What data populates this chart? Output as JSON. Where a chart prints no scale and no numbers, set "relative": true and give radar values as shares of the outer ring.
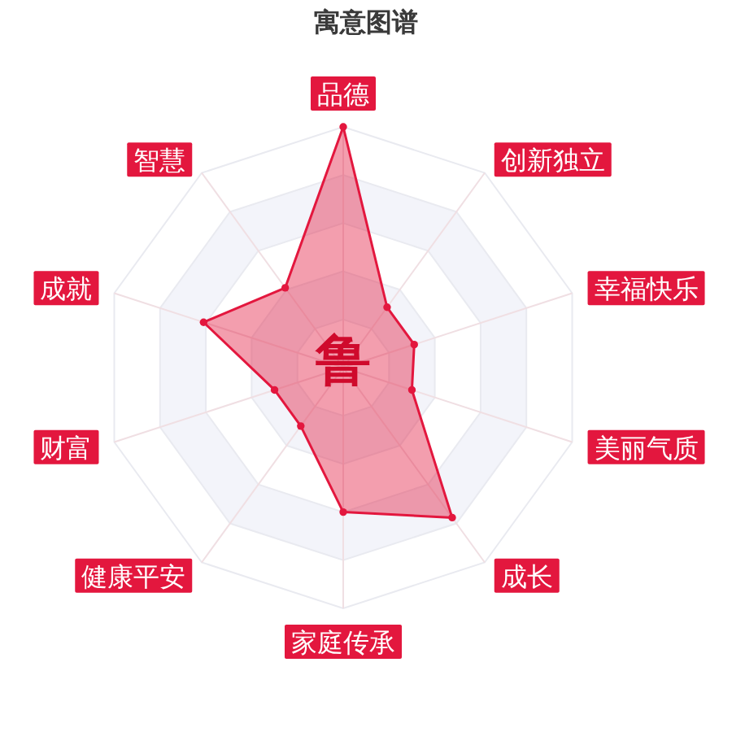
{
  "chart_data": {
    "type": "radar",
    "title": "寓意图谱",
    "categories": [
      "品德",
      "创新独立",
      "幸福快乐",
      "美丽气质",
      "成长",
      "家庭传承",
      "健康平安",
      "财富",
      "成就",
      "智慧"
    ],
    "relative": true,
    "series": [
      {
        "color": "#e3173e",
        "values": [
          1.0,
          0.31,
          0.31,
          0.3,
          0.77,
          0.6,
          0.3,
          0.3,
          0.61,
          0.41
        ]
      }
    ],
    "annotations": [
      "鲁"
    ],
    "grid": true,
    "marker": "circle",
    "line_style": "solid"
  }
}
